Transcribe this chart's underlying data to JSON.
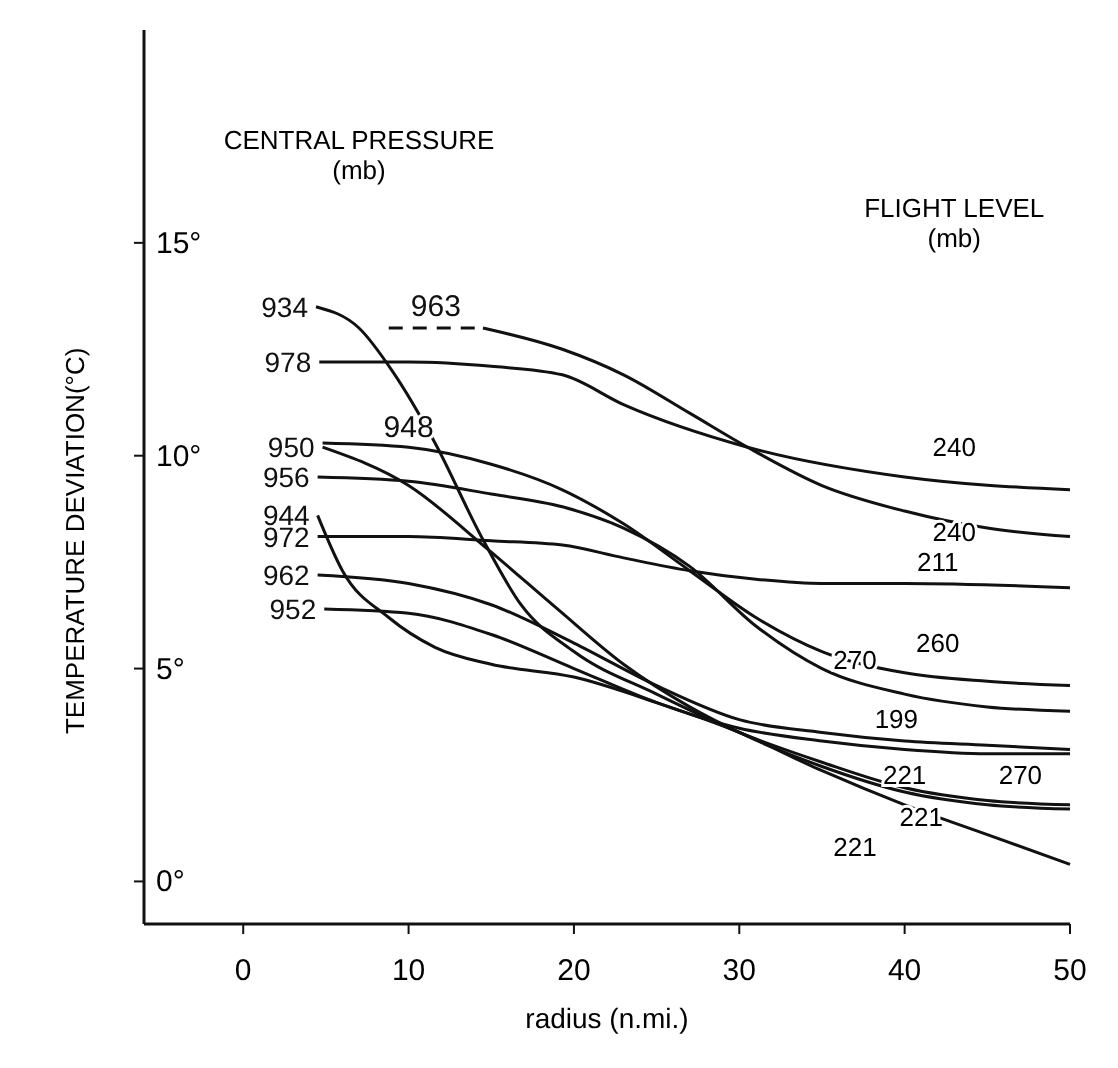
{
  "chart_data": {
    "type": "line",
    "xlabel": "radius (n.mi.)",
    "ylabel": "TEMPERATURE DEVIATION(°C)",
    "xlim": [
      -6,
      50
    ],
    "ylim": [
      -1,
      20
    ],
    "xticks": [
      0,
      10,
      20,
      30,
      40,
      50
    ],
    "yticks": [
      {
        "value": 0,
        "label": "0°"
      },
      {
        "value": 5,
        "label": "5°"
      },
      {
        "value": 10,
        "label": "10°"
      },
      {
        "value": 15,
        "label": "15°"
      }
    ],
    "grid": false,
    "marker": "none",
    "line_style": "solid",
    "series": [
      {
        "name": "934",
        "color": "#111111",
        "x": [
          4.4,
          7,
          9,
          11.6,
          14.4,
          16.8,
          20,
          25,
          30,
          35,
          40,
          45,
          50
        ],
        "values": [
          13.5,
          13,
          12,
          10.3,
          8.1,
          6.5,
          5.4,
          4.4,
          3.5,
          2.8,
          2.2,
          1.9,
          1.8
        ]
      },
      {
        "name": "963",
        "color": "#111111",
        "line_style": "dashed",
        "x": [
          8.8,
          14.5
        ],
        "values": [
          13,
          13
        ]
      },
      {
        "color": "#111111",
        "x": [
          14.5,
          19.3,
          23,
          27,
          30.5,
          35,
          40,
          45,
          50
        ],
        "values": [
          13,
          12.5,
          11.9,
          11,
          10.2,
          9.3,
          8.7,
          8.3,
          8.1
        ]
      },
      {
        "name": "978",
        "color": "#111111",
        "x": [
          4.6,
          10,
          15,
          19.3,
          23,
          30.5,
          40,
          50
        ],
        "values": [
          12.2,
          12.2,
          12.1,
          11.9,
          11.2,
          10.2,
          9.5,
          9.2
        ]
      },
      {
        "name": "950",
        "color": "#111111",
        "x": [
          4.8,
          10,
          14.8,
          19,
          23,
          27,
          30,
          35,
          40,
          45,
          50
        ],
        "values": [
          10.2,
          9.3,
          7.8,
          6.4,
          5.1,
          4.1,
          3.5,
          2.7,
          2.1,
          1.8,
          1.7
        ]
      },
      {
        "name": "948",
        "color": "#111111",
        "x": [
          4.8,
          10,
          15,
          19.3,
          23,
          27,
          31,
          35,
          40,
          45,
          50
        ],
        "values": [
          10.3,
          10.2,
          9.8,
          9.2,
          8.4,
          7.3,
          6.2,
          5.4,
          4.9,
          4.7,
          4.6
        ]
      },
      {
        "name": "956",
        "color": "#111111",
        "x": [
          4.5,
          10,
          15,
          19.3,
          23,
          27,
          31,
          35,
          40,
          45,
          50
        ],
        "values": [
          9.5,
          9.4,
          9.1,
          8.8,
          8.3,
          7.4,
          6,
          5,
          4.4,
          4.1,
          4
        ]
      },
      {
        "name": "944",
        "color": "#111111",
        "x": [
          4.5,
          6,
          8.8,
          11.6,
          15,
          20,
          25,
          30,
          35,
          40,
          45,
          50
        ],
        "values": [
          8.6,
          7.3,
          6.2,
          5.5,
          5.1,
          4.8,
          4.2,
          3.5,
          2.6,
          1.8,
          1.1,
          0.4
        ]
      },
      {
        "name": "972",
        "color": "#111111",
        "x": [
          4.5,
          10,
          15,
          19.3,
          23,
          27,
          31,
          35,
          40,
          50
        ],
        "values": [
          8.1,
          8.1,
          8,
          7.9,
          7.6,
          7.3,
          7.1,
          7,
          7,
          6.9
        ]
      },
      {
        "name": "962",
        "color": "#111111",
        "x": [
          4.5,
          10,
          15,
          20,
          25,
          30,
          35,
          40,
          45,
          50
        ],
        "values": [
          7.2,
          7,
          6.5,
          5.6,
          4.6,
          3.8,
          3.5,
          3.3,
          3.2,
          3.1
        ]
      },
      {
        "name": "952",
        "color": "#111111",
        "x": [
          4.9,
          10,
          15,
          20,
          25,
          30,
          35,
          40,
          45,
          50
        ],
        "values": [
          6.4,
          6.3,
          5.8,
          5,
          4.2,
          3.6,
          3.3,
          3.1,
          3,
          3
        ]
      }
    ],
    "annotations": [
      "CENTRAL PRESSURE\n(mb)",
      "FLIGHT LEVEL\n(mb)",
      "240",
      "240",
      "211",
      "260",
      "270",
      "199",
      "221",
      "270",
      "221",
      "221"
    ]
  }
}
